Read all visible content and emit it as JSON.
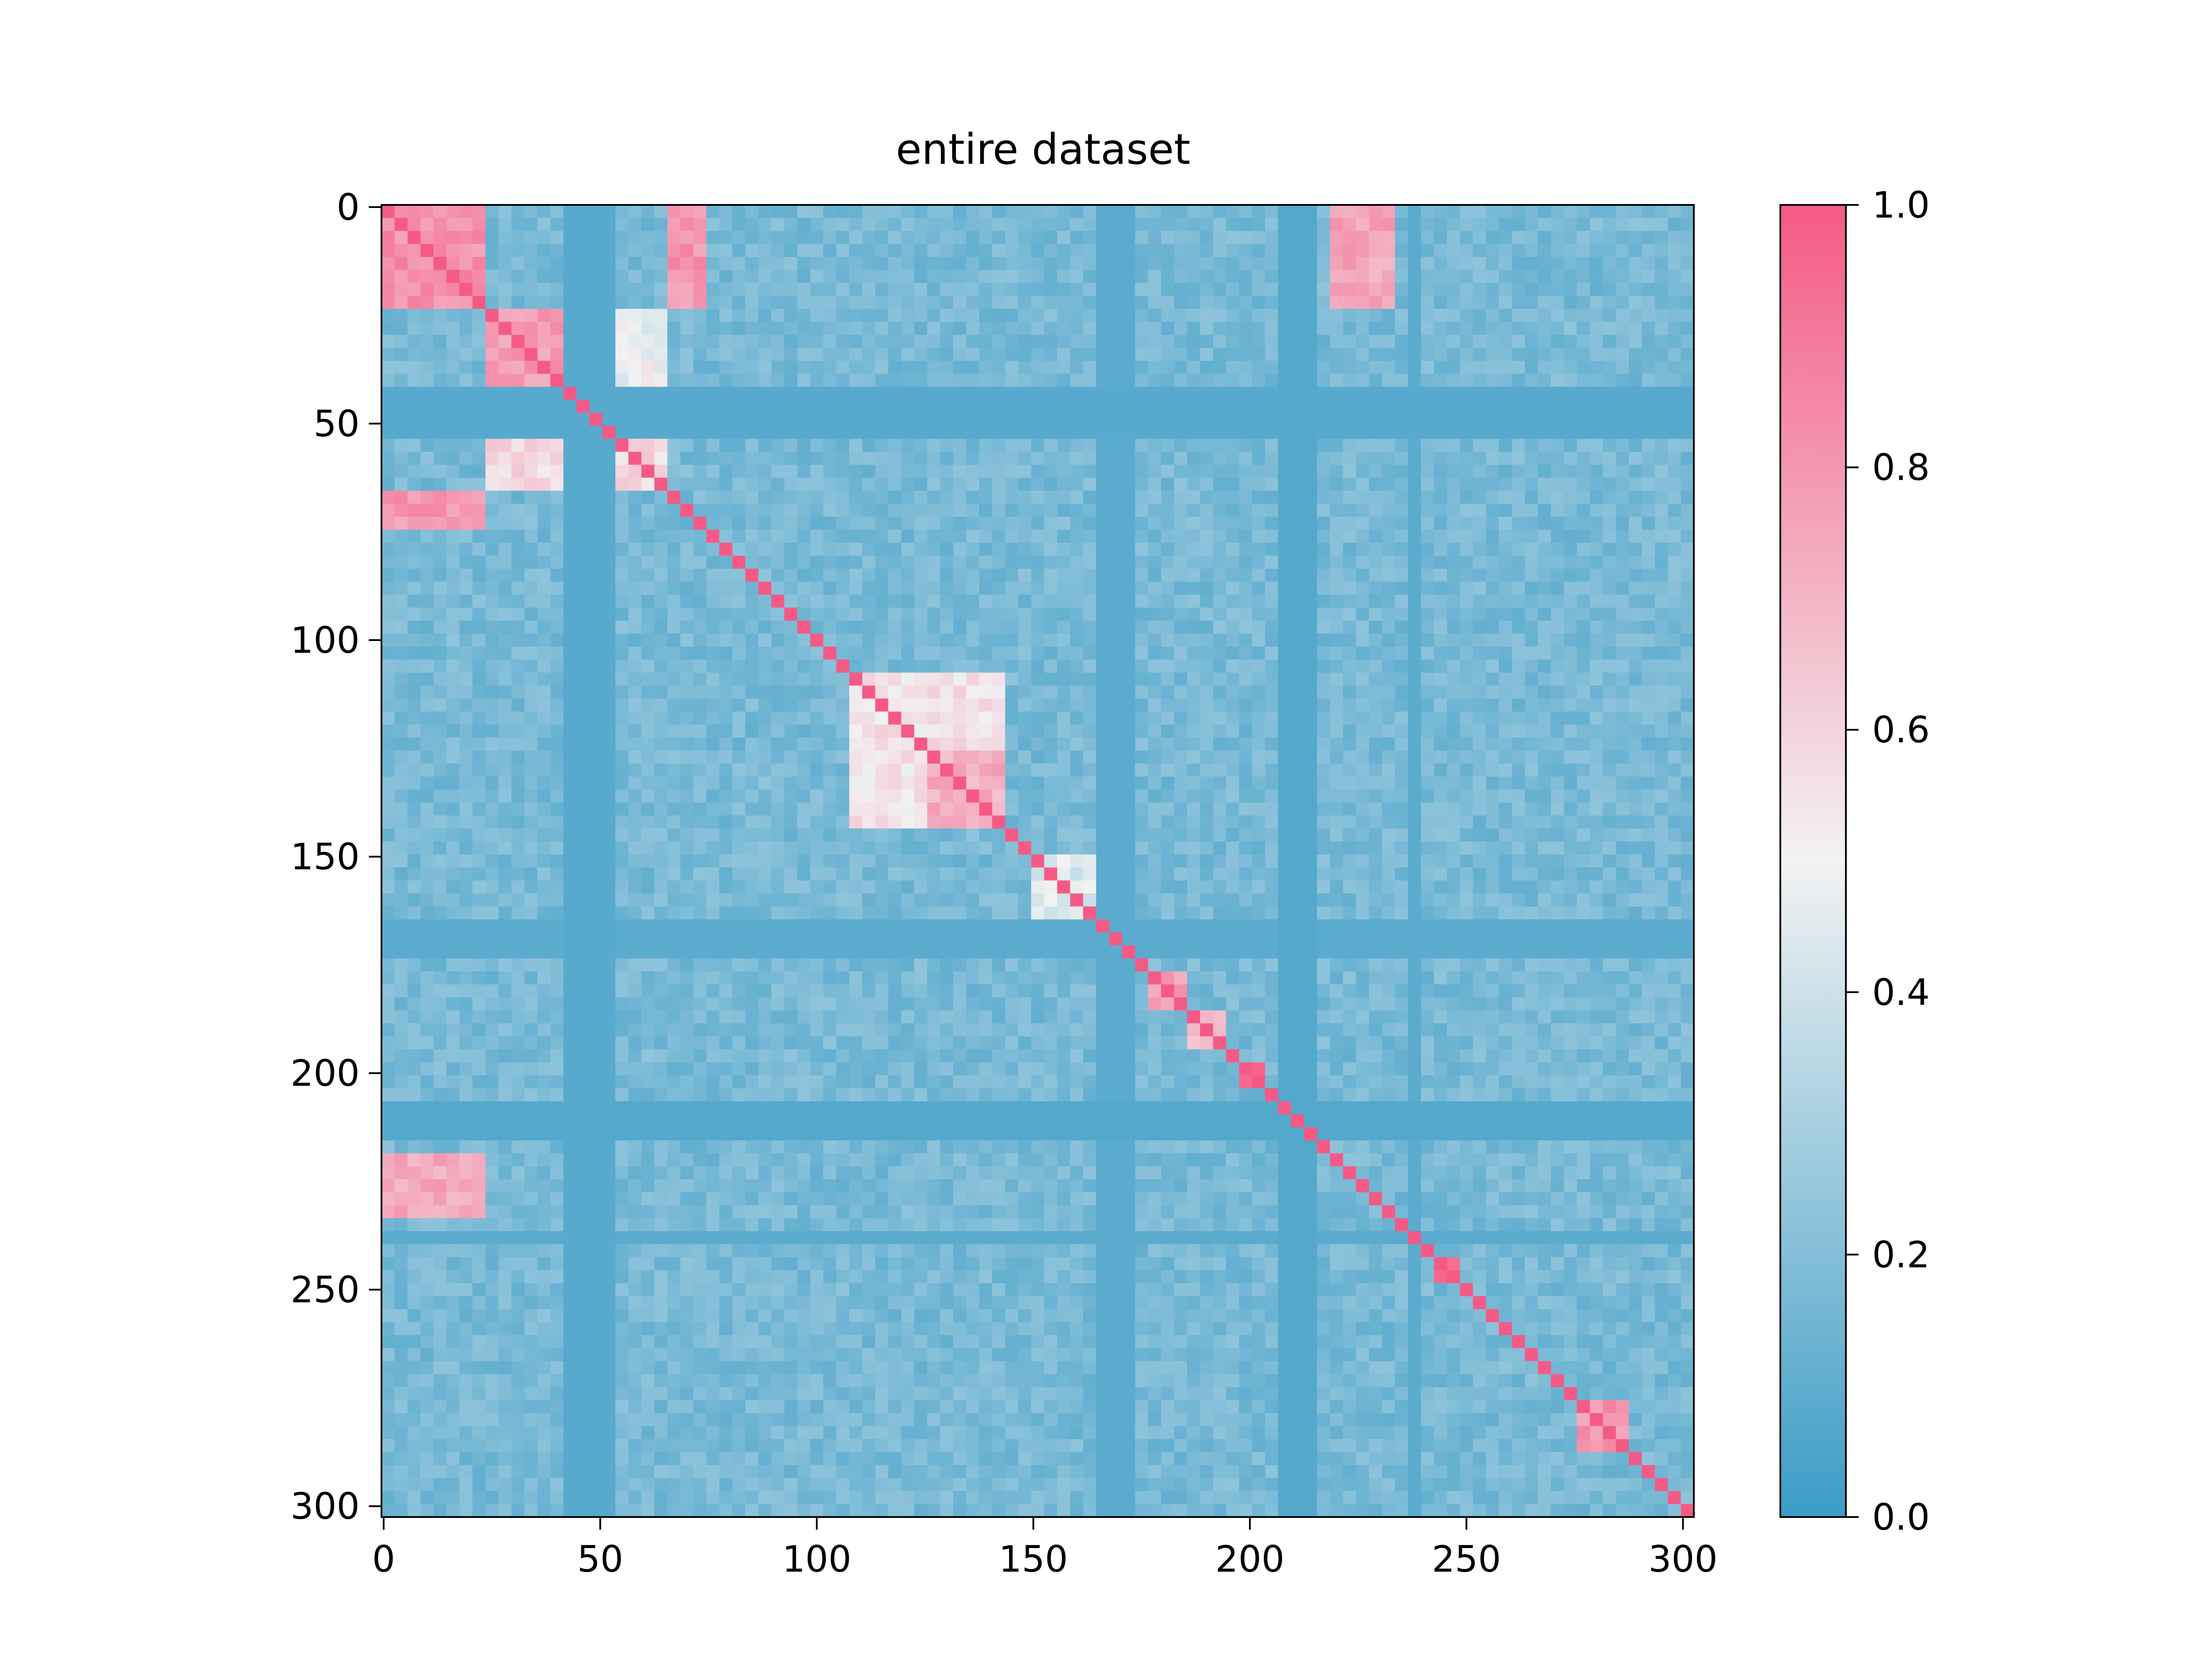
{
  "chart_data": {
    "type": "heatmap",
    "title": "entire dataset",
    "xlabel": "",
    "ylabel": "",
    "matrix_size": 303,
    "x_ticks": [
      0,
      50,
      100,
      150,
      200,
      250,
      300
    ],
    "y_ticks": [
      0,
      50,
      100,
      150,
      200,
      250,
      300
    ],
    "xlim": [
      0,
      303
    ],
    "ylim": [
      0,
      303
    ],
    "y_axis_inverted": true,
    "grid": false,
    "colorbar": {
      "ticks": [
        "0.0",
        "0.2",
        "0.4",
        "0.6",
        "0.8",
        "1.0"
      ],
      "range": [
        0.0,
        1.0
      ],
      "cmap": [
        "#3a9cc6",
        "#f2f2f2",
        "#f55a85"
      ]
    },
    "background_value": 0.17,
    "blocks": [
      {
        "rows": [
          0,
          21
        ],
        "cols": [
          0,
          21
        ],
        "value": 0.82
      },
      {
        "rows": [
          22,
          42
        ],
        "cols": [
          22,
          42
        ],
        "value": 0.78
      },
      {
        "rows": [
          43,
          64
        ],
        "cols": [
          22,
          64
        ],
        "value": 0.58
      },
      {
        "rows": [
          22,
          42
        ],
        "cols": [
          43,
          64
        ],
        "value": 0.48
      },
      {
        "rows": [
          65,
          72
        ],
        "cols": [
          0,
          21
        ],
        "value": 0.8
      },
      {
        "rows": [
          0,
          21
        ],
        "cols": [
          65,
          72
        ],
        "value": 0.8
      },
      {
        "rows": [
          0,
          21
        ],
        "cols": [
          217,
          233
        ],
        "value": 0.75
      },
      {
        "rows": [
          217,
          233
        ],
        "cols": [
          0,
          21
        ],
        "value": 0.75
      },
      {
        "rows": [
          108,
          142
        ],
        "cols": [
          108,
          142
        ],
        "value": 0.55
      },
      {
        "rows": [
          125,
          142
        ],
        "cols": [
          125,
          142
        ],
        "value": 0.72
      },
      {
        "rows": [
          150,
          165
        ],
        "cols": [
          150,
          165
        ],
        "value": 0.45
      },
      {
        "rows": [
          167,
          176
        ],
        "cols": [
          167,
          176
        ],
        "value": 0.72
      },
      {
        "rows": [
          176,
          185
        ],
        "cols": [
          176,
          185
        ],
        "value": 0.78
      },
      {
        "rows": [
          185,
          193
        ],
        "cols": [
          185,
          193
        ],
        "value": 0.65
      },
      {
        "rows": [
          196,
          203
        ],
        "cols": [
          196,
          203
        ],
        "value": 0.92
      },
      {
        "rows": [
          208,
          215
        ],
        "cols": [
          208,
          215
        ],
        "value": 0.95
      },
      {
        "rows": [
          241,
          247
        ],
        "cols": [
          241,
          247
        ],
        "value": 0.95
      },
      {
        "rows": [
          275,
          285
        ],
        "cols": [
          275,
          285
        ],
        "value": 0.8
      }
    ],
    "low_bands": [
      {
        "index": [
          40,
          52
        ],
        "value": 0.08
      },
      {
        "index": [
          165,
          172
        ],
        "value": 0.09
      },
      {
        "index": [
          205,
          215
        ],
        "value": 0.07
      },
      {
        "index": [
          235,
          238
        ],
        "value": 0.09
      }
    ],
    "diagonal_value": 1.0
  }
}
